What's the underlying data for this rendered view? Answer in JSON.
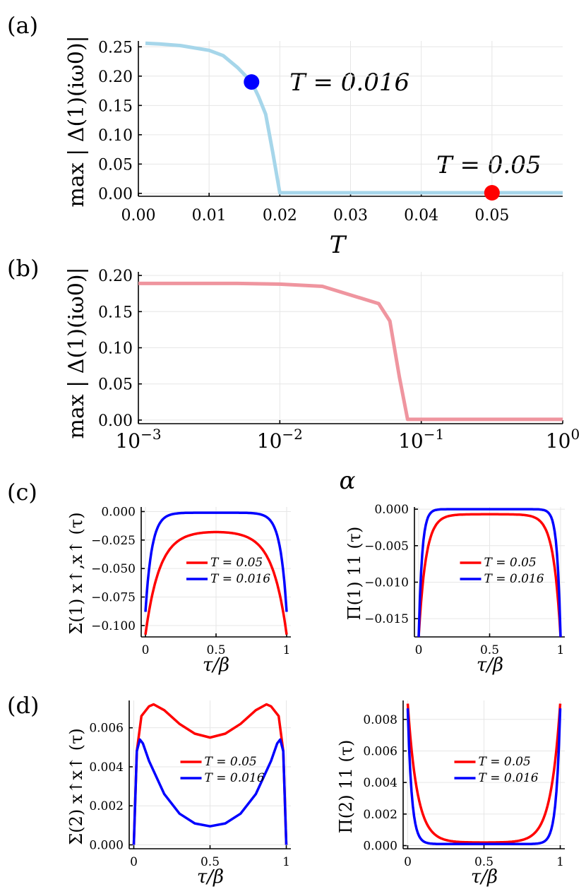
{
  "chart_data": [
    {
      "panel": "(a)",
      "type": "line",
      "xlabel": "T",
      "ylabel": "max | Δ(1)(iω0)|",
      "xlim": [
        0,
        0.06
      ],
      "ylim": [
        -0.005,
        0.26
      ],
      "xticks": [
        "0.00",
        "0.01",
        "0.02",
        "0.03",
        "0.04",
        "0.05"
      ],
      "yticks": [
        "0.00",
        "0.05",
        "0.10",
        "0.15",
        "0.20",
        "0.25"
      ],
      "series": [
        {
          "name": "gap",
          "color": "#a6d6ea",
          "x": [
            0.001,
            0.003,
            0.006,
            0.01,
            0.012,
            0.014,
            0.016,
            0.017,
            0.018,
            0.019,
            0.02,
            0.03,
            0.04,
            0.05,
            0.06
          ],
          "y": [
            0.256,
            0.255,
            0.252,
            0.244,
            0.235,
            0.215,
            0.19,
            0.165,
            0.135,
            0.07,
            0.001,
            0.001,
            0.001,
            0.001,
            0.001
          ]
        }
      ],
      "markers": [
        {
          "x": 0.016,
          "y": 0.19,
          "color": "#0000ff",
          "label": "T = 0.016"
        },
        {
          "x": 0.05,
          "y": 0.001,
          "color": "#ff0000",
          "label": "T = 0.05"
        }
      ]
    },
    {
      "panel": "(b)",
      "type": "line",
      "xlabel": "α",
      "ylabel": "max | Δ(1)(iω0)|",
      "xscale": "log",
      "xlim": [
        0.001,
        1
      ],
      "ylim": [
        -0.005,
        0.205
      ],
      "xticks": [
        "10",
        "10",
        "10",
        "10"
      ],
      "xtick_exponents": [
        "−3",
        "−2",
        "−1",
        "0"
      ],
      "yticks": [
        "0.00",
        "0.05",
        "0.10",
        "0.15",
        "0.20"
      ],
      "series": [
        {
          "name": "gap",
          "color": "#ef959f",
          "x": [
            0.001,
            0.005,
            0.01,
            0.02,
            0.05,
            0.06,
            0.07,
            0.08,
            0.1,
            1
          ],
          "y": [
            0.189,
            0.189,
            0.188,
            0.185,
            0.161,
            0.137,
            0.06,
            0.001,
            0.001,
            0.001
          ]
        }
      ]
    },
    {
      "panel": "(c) left",
      "type": "line",
      "xlabel": "τ/β",
      "ylabel": "Σ(1) x↑,x↑ (τ)",
      "xlim": [
        -0.03,
        1.03
      ],
      "ylim": [
        -0.11,
        0.004
      ],
      "xticks": [
        "0",
        "0.5",
        "1"
      ],
      "yticks": [
        "0.000",
        "−0.025",
        "−0.050",
        "−0.075",
        "−0.100"
      ],
      "legend": [
        "T = 0.05",
        "T = 0.016"
      ],
      "series": [
        {
          "name": "T = 0.05",
          "color": "#ff0000",
          "shape": "dome",
          "end": -0.108,
          "mid": -0.018,
          "k": 10
        },
        {
          "name": "T = 0.016",
          "color": "#0000ff",
          "shape": "dome",
          "end": -0.088,
          "mid": -0.001,
          "k": 22
        }
      ]
    },
    {
      "panel": "(c) right",
      "type": "line",
      "xlabel": "τ/β",
      "ylabel": "Π(1) 11 (τ)",
      "xlim": [
        -0.03,
        1.03
      ],
      "ylim": [
        -0.0175,
        0.0003
      ],
      "xticks": [
        "0",
        "0.5",
        "1"
      ],
      "yticks": [
        "0.000",
        "−0.005",
        "−0.010",
        "−0.015"
      ],
      "legend": [
        "T = 0.05",
        "T = 0.016"
      ],
      "series": [
        {
          "name": "T = 0.05",
          "color": "#ff0000",
          "shape": "dome",
          "end": -0.0175,
          "mid": -0.0007,
          "k": 20
        },
        {
          "name": "T = 0.016",
          "color": "#0000ff",
          "shape": "dome",
          "end": -0.0175,
          "mid": 0.0,
          "k": 42
        }
      ]
    },
    {
      "panel": "(d) left",
      "type": "line",
      "xlabel": "τ/β",
      "ylabel": "Σ(2) x↑x↑ (τ)",
      "xlim": [
        -0.03,
        1.03
      ],
      "ylim": [
        -0.0002,
        0.0074
      ],
      "xticks": [
        "0",
        "0.5",
        "1"
      ],
      "yticks": [
        "0.000",
        "0.002",
        "0.004",
        "0.006"
      ],
      "legend": [
        "T = 0.05",
        "T = 0.016"
      ],
      "series": [
        {
          "name": "T = 0.05",
          "color": "#ff0000",
          "x": [
            0,
            0.02,
            0.05,
            0.1,
            0.13,
            0.2,
            0.3,
            0.4,
            0.5,
            0.6,
            0.7,
            0.8,
            0.87,
            0.9,
            0.95,
            0.98,
            1
          ],
          "y": [
            0,
            0.0048,
            0.0066,
            0.0071,
            0.0072,
            0.0069,
            0.0062,
            0.0057,
            0.0055,
            0.0057,
            0.0062,
            0.0069,
            0.0072,
            0.0071,
            0.0066,
            0.0048,
            0
          ]
        },
        {
          "name": "T = 0.016",
          "color": "#0000ff",
          "x": [
            0,
            0.02,
            0.04,
            0.06,
            0.1,
            0.2,
            0.3,
            0.4,
            0.5,
            0.6,
            0.7,
            0.8,
            0.9,
            0.94,
            0.96,
            0.98,
            1
          ],
          "y": [
            0,
            0.0048,
            0.0054,
            0.0052,
            0.0043,
            0.0026,
            0.0016,
            0.0011,
            0.00095,
            0.0011,
            0.0016,
            0.0026,
            0.0043,
            0.0052,
            0.0054,
            0.0048,
            0
          ]
        }
      ]
    },
    {
      "panel": "(d) right",
      "type": "line",
      "xlabel": "τ/β",
      "ylabel": "Π(2) 11 (τ)",
      "xlim": [
        -0.03,
        1.03
      ],
      "ylim": [
        -0.0002,
        0.0092
      ],
      "xticks": [
        "0",
        "0.5",
        "1"
      ],
      "yticks": [
        "0.000",
        "0.002",
        "0.004",
        "0.006",
        "0.008"
      ],
      "legend": [
        "T = 0.05",
        "T = 0.016"
      ],
      "series": [
        {
          "name": "T = 0.05",
          "color": "#ff0000",
          "shape": "bowl",
          "end": 0.009,
          "mid": 0.0002,
          "k": 16
        },
        {
          "name": "T = 0.016",
          "color": "#0000ff",
          "shape": "bowl",
          "end": 0.0087,
          "mid": 0.0001,
          "k": 38
        }
      ]
    }
  ],
  "labels": {
    "a": "(a)",
    "b": "(b)",
    "c": "(c)",
    "d": "(d)",
    "a_xlabel": "T",
    "b_xlabel": "α",
    "tau_xlabel": "τ/β",
    "ann_blue": "T = 0.016",
    "ann_red": "T = 0.05"
  }
}
